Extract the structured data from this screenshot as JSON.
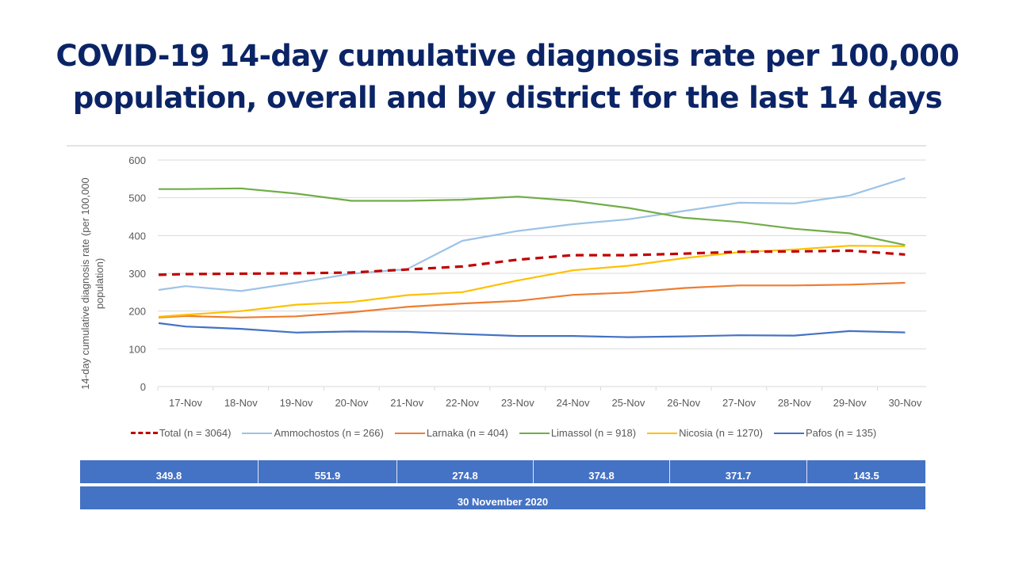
{
  "title": {
    "line1": "COVID-19 14-day cumulative diagnosis rate per 100,000",
    "line2": "population, overall and by district for the last 14 days"
  },
  "chart_data": {
    "type": "line",
    "title": "COVID-19 14-day cumulative diagnosis rate per 100,000 population, overall and by district for the last 14 days",
    "xlabel": "",
    "ylabel": "14-day cumulative diagnosis rate (per 100,000 population)",
    "ylabel_lines": [
      "14-day cumulative diagnosis rate (per 100,000",
      "population)"
    ],
    "ylim": [
      0,
      600
    ],
    "yticks": [
      0,
      100,
      200,
      300,
      400,
      500,
      600
    ],
    "grid": true,
    "legend_position": "bottom",
    "categories": [
      "",
      "17-Nov",
      "18-Nov",
      "19-Nov",
      "20-Nov",
      "21-Nov",
      "22-Nov",
      "23-Nov",
      "24-Nov",
      "25-Nov",
      "26-Nov",
      "27-Nov",
      "28-Nov",
      "29-Nov",
      "30-Nov"
    ],
    "series": [
      {
        "name": "Total (n = 3064)",
        "color": "#c00000",
        "dashed": true,
        "values": [
          296,
          298,
          299,
          300,
          302,
          310,
          318,
          336,
          348,
          348,
          352,
          357,
          358,
          360,
          349.8
        ]
      },
      {
        "name": "Ammochostos (n = 266)",
        "color": "#9dc3e6",
        "dashed": false,
        "values": [
          256,
          266,
          253,
          275,
          299,
          311,
          386,
          412,
          430,
          443,
          465,
          487,
          485,
          506,
          551.9
        ]
      },
      {
        "name": "Larnaka (n = 404)",
        "color": "#ed7d31",
        "dashed": false,
        "values": [
          183,
          187,
          183,
          186,
          197,
          211,
          220,
          227,
          243,
          249,
          261,
          268,
          268,
          270,
          274.8
        ]
      },
      {
        "name": "Limassol (n = 918)",
        "color": "#70ad47",
        "dashed": false,
        "values": [
          523,
          523,
          525,
          511,
          492,
          492,
          495,
          503,
          492,
          473,
          447,
          436,
          418,
          406,
          374.8
        ]
      },
      {
        "name": "Nicosia (n = 1270)",
        "color": "#ffc000",
        "dashed": false,
        "values": [
          185,
          190,
          200,
          217,
          224,
          242,
          250,
          281,
          308,
          320,
          340,
          356,
          363,
          373,
          371.7
        ]
      },
      {
        "name": "Pafos (n = 135)",
        "color": "#4472c4",
        "dashed": false,
        "values": [
          168,
          159,
          153,
          143,
          146,
          145,
          139,
          134,
          134,
          131,
          133,
          136,
          135,
          147,
          143.5
        ]
      }
    ]
  },
  "summary_table": {
    "values": [
      "349.8",
      "551.9",
      "274.8",
      "374.8",
      "371.7",
      "143.5"
    ],
    "date": "30 November 2020",
    "color": "#4472c4"
  }
}
